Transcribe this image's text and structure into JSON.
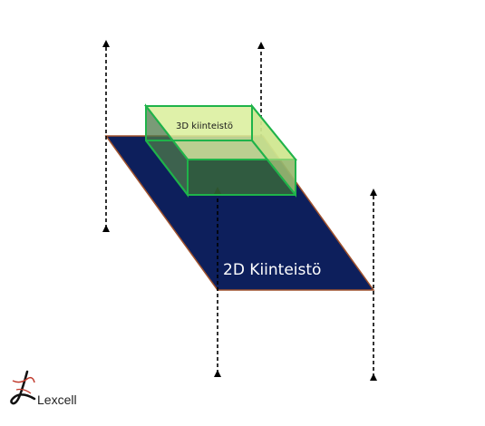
{
  "diagram": {
    "label_2d": "2D Kiinteistö",
    "label_3d": "3D kiinteistö",
    "colors": {
      "parcel_fill": "#0d1f5c",
      "parcel_edge": "#a0522d",
      "box_edge": "#1fb34a",
      "box_face_light": "#d9ee9a",
      "box_face_dark": "#3a6a3a",
      "arrow": "#000000"
    }
  },
  "logo": {
    "text": "Lexcell",
    "icon": "lexcell-logo-icon"
  }
}
